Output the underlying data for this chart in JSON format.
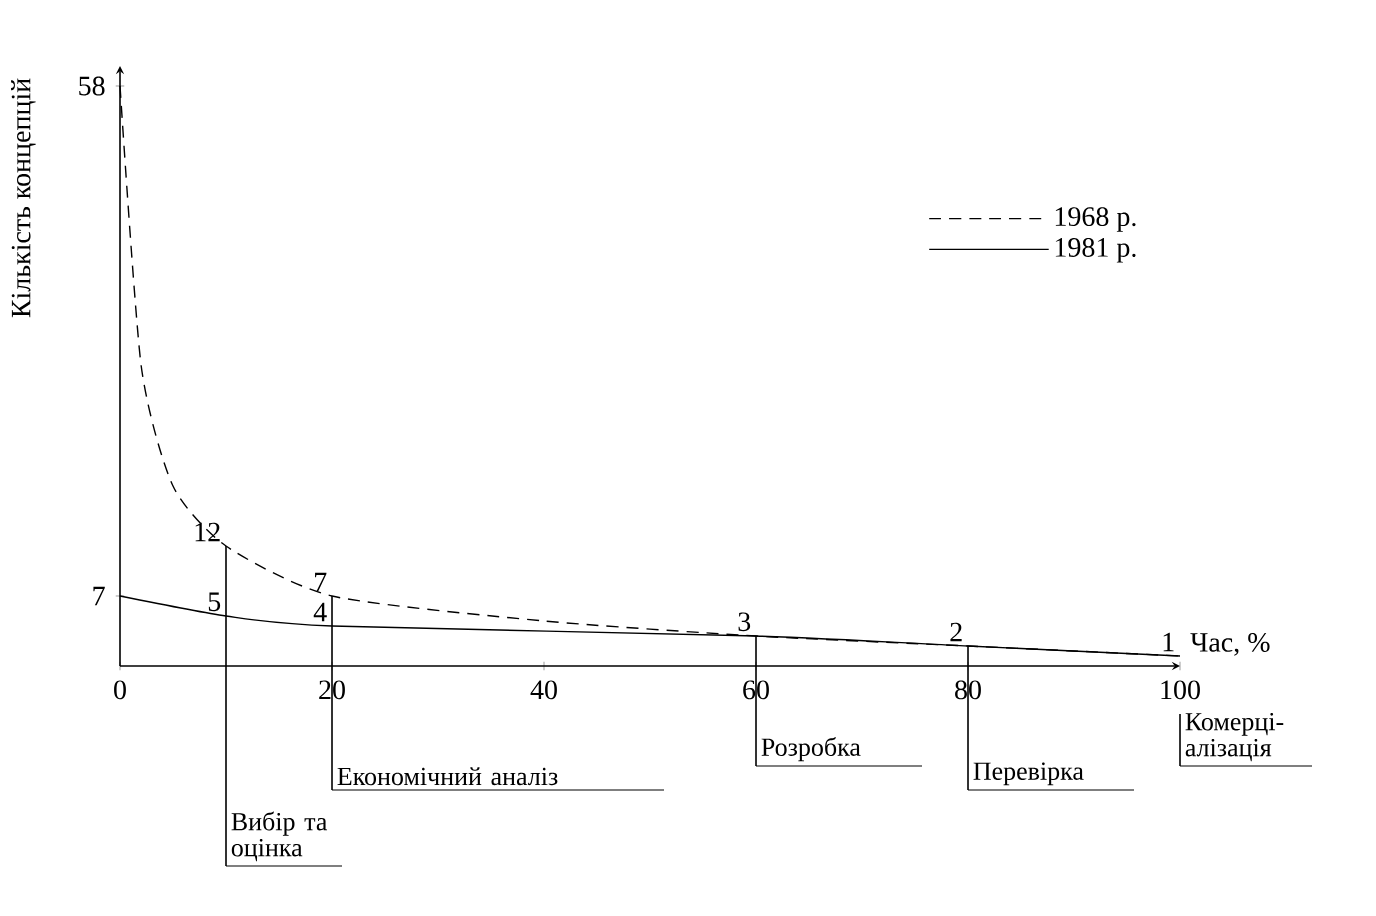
{
  "chart_data": {
    "type": "line",
    "xlabel": "Час, %",
    "ylabel": "Кількість концепцій",
    "xlim": [
      0,
      100
    ],
    "xticks": [
      0,
      20,
      40,
      60,
      80,
      100
    ],
    "ylim": [
      0,
      60
    ],
    "yticks": [
      7,
      58
    ],
    "legend": "right",
    "grid": false,
    "series": [
      {
        "name": "1981 р.",
        "color": "#000000",
        "line_style": "solid",
        "x": [
          0,
          10,
          20,
          60,
          80,
          100
        ],
        "values": [
          7,
          5,
          4,
          3,
          2,
          1
        ],
        "value_labels": [
          null,
          "5",
          "4",
          "3",
          "2",
          "1"
        ]
      },
      {
        "name": "1968 р.",
        "color": "#000000",
        "line_style": "dashed",
        "x": [
          0,
          2,
          5,
          10,
          20,
          40,
          60,
          80,
          100
        ],
        "values": [
          58,
          30,
          18,
          12,
          7,
          4.5,
          3,
          2,
          1
        ],
        "value_labels": [
          null,
          null,
          null,
          "12",
          "7",
          null,
          null,
          null,
          null
        ]
      }
    ],
    "ref_lines": [
      {
        "axis": "x",
        "value": 10,
        "label": "Вибір та оцінка"
      },
      {
        "axis": "x",
        "value": 20,
        "label": "Економічний аналіз"
      },
      {
        "axis": "x",
        "value": 60,
        "label": "Розробка"
      },
      {
        "axis": "x",
        "value": 80,
        "label": "Перевірка"
      },
      {
        "axis": "x",
        "value": 100,
        "label": "Комерці-алізація"
      }
    ]
  }
}
